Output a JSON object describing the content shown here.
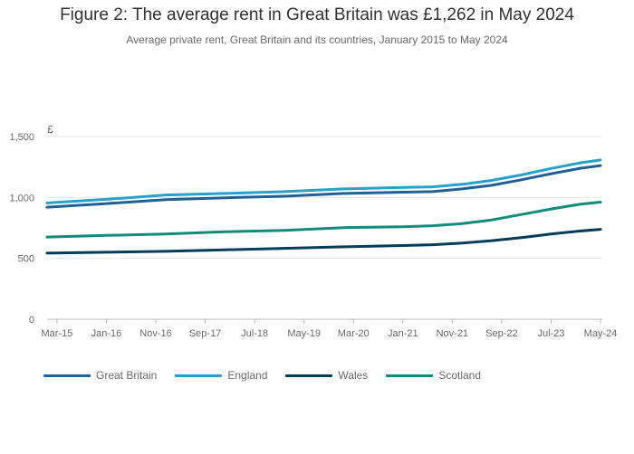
{
  "title": "Figure 2: The average rent in Great Britain was £1,262 in May 2024",
  "subtitle": "Average private rent, Great Britain and its countries, January 2015 to May 2024",
  "chart_data": {
    "type": "line",
    "yunit": "£",
    "ylim": [
      0,
      1500
    ],
    "yticks": [
      0,
      500,
      1000,
      1500
    ],
    "ytick_labels": [
      "0",
      "500",
      "1,000",
      "1,500"
    ],
    "xlim": [
      "2015-01",
      "2024-05"
    ],
    "xticks": [
      "2015-03",
      "2016-01",
      "2016-11",
      "2017-09",
      "2018-07",
      "2019-05",
      "2020-03",
      "2021-01",
      "2021-11",
      "2022-09",
      "2023-07",
      "2024-05"
    ],
    "xtick_labels": [
      "Mar-15",
      "Jan-16",
      "Nov-16",
      "Sep-17",
      "Jul-18",
      "May-19",
      "Mar-20",
      "Jan-21",
      "Nov-21",
      "Sep-22",
      "Jul-23",
      "May-24"
    ],
    "grid": true,
    "legend_position": "bottom",
    "series": [
      {
        "name": "Great Britain",
        "color": "#206095",
        "x": [
          "2015-01",
          "2016-01",
          "2017-01",
          "2018-01",
          "2019-01",
          "2020-01",
          "2021-01",
          "2021-07",
          "2022-01",
          "2022-07",
          "2023-01",
          "2023-07",
          "2024-01",
          "2024-05"
        ],
        "values": [
          920,
          950,
          982,
          997,
          1010,
          1033,
          1043,
          1048,
          1070,
          1100,
          1145,
          1195,
          1240,
          1262
        ]
      },
      {
        "name": "England",
        "color": "#27a0cc",
        "x": [
          "2015-01",
          "2016-01",
          "2017-01",
          "2018-01",
          "2019-01",
          "2020-01",
          "2021-01",
          "2021-07",
          "2022-01",
          "2022-07",
          "2023-01",
          "2023-07",
          "2024-01",
          "2024-05"
        ],
        "values": [
          955,
          985,
          1020,
          1033,
          1048,
          1070,
          1082,
          1087,
          1108,
          1140,
          1185,
          1238,
          1285,
          1308
        ]
      },
      {
        "name": "Wales",
        "color": "#003c57",
        "x": [
          "2015-01",
          "2016-01",
          "2017-01",
          "2018-01",
          "2019-01",
          "2020-01",
          "2021-01",
          "2021-07",
          "2022-01",
          "2022-07",
          "2023-01",
          "2023-07",
          "2024-01",
          "2024-05"
        ],
        "values": [
          543,
          550,
          558,
          570,
          582,
          595,
          605,
          612,
          625,
          645,
          670,
          700,
          725,
          738
        ]
      },
      {
        "name": "Scotland",
        "color": "#118c7b",
        "x": [
          "2015-01",
          "2016-01",
          "2017-01",
          "2018-01",
          "2019-01",
          "2020-01",
          "2021-01",
          "2021-07",
          "2022-01",
          "2022-07",
          "2023-01",
          "2023-07",
          "2024-01",
          "2024-05"
        ],
        "values": [
          675,
          688,
          700,
          718,
          730,
          752,
          760,
          768,
          785,
          815,
          860,
          905,
          945,
          962
        ]
      }
    ]
  }
}
